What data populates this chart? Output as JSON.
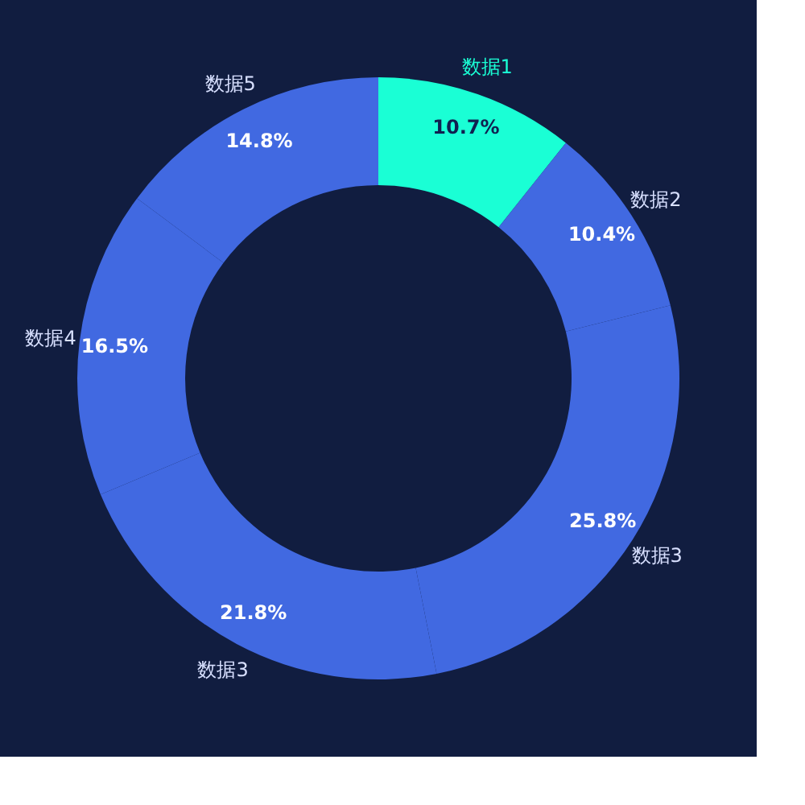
{
  "chart_data": {
    "type": "donut",
    "categories": [
      "数据1",
      "数据2",
      "数据3",
      "数据3",
      "数据4",
      "数据5"
    ],
    "values": [
      10.7,
      10.4,
      25.8,
      21.8,
      16.5,
      14.8
    ],
    "value_labels": [
      "10.7%",
      "10.4%",
      "25.8%",
      "21.8%",
      "16.5%",
      "14.8%"
    ],
    "colors": [
      "#1affd5",
      "#4169e1",
      "#4169e1",
      "#4169e1",
      "#4169e1",
      "#4169e1"
    ],
    "legend": false
  }
}
